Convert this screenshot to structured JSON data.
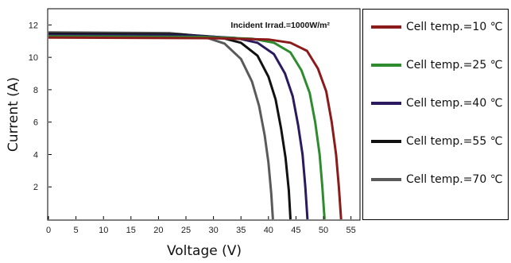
{
  "chart_data": {
    "type": "line",
    "annotation": "Incident Irrad.=1000W/m²",
    "xlabel": "Voltage (V)",
    "ylabel": "Current (A)",
    "xlim": [
      0,
      56.5
    ],
    "ylim": [
      0,
      13
    ],
    "xticks": [
      "0",
      "5",
      "10",
      "15",
      "20",
      "25",
      "30",
      "35",
      "40",
      "45",
      "50",
      "55"
    ],
    "yticks": [
      "2",
      "4",
      "6",
      "8",
      "10",
      "12"
    ],
    "grid": false,
    "legend_position": "right",
    "series": [
      {
        "name": "Cell temp.=10 ℃",
        "color": "#8b1a1a",
        "points": [
          [
            0,
            11.22
          ],
          [
            30,
            11.18
          ],
          [
            40,
            11.1
          ],
          [
            44,
            10.9
          ],
          [
            47,
            10.4
          ],
          [
            49,
            9.3
          ],
          [
            50.5,
            7.9
          ],
          [
            51.5,
            6.0
          ],
          [
            52.3,
            4.0
          ],
          [
            52.8,
            2.0
          ],
          [
            53.2,
            0
          ]
        ]
      },
      {
        "name": "Cell temp.=25 ℃",
        "color": "#2e8b2e",
        "points": [
          [
            0,
            11.3
          ],
          [
            28,
            11.26
          ],
          [
            37,
            11.15
          ],
          [
            41,
            10.9
          ],
          [
            44,
            10.3
          ],
          [
            46,
            9.2
          ],
          [
            47.5,
            7.8
          ],
          [
            48.5,
            6.0
          ],
          [
            49.3,
            4.0
          ],
          [
            49.8,
            2.0
          ],
          [
            50.2,
            0
          ]
        ]
      },
      {
        "name": "Cell temp.=40 ℃",
        "color": "#2b1a5e",
        "points": [
          [
            0,
            11.38
          ],
          [
            26,
            11.34
          ],
          [
            34,
            11.2
          ],
          [
            38,
            10.9
          ],
          [
            41,
            10.2
          ],
          [
            43,
            9.0
          ],
          [
            44.4,
            7.6
          ],
          [
            45.4,
            5.8
          ],
          [
            46.2,
            4.0
          ],
          [
            46.7,
            2.0
          ],
          [
            47.1,
            0
          ]
        ]
      },
      {
        "name": "Cell temp.=55 ℃",
        "color": "#111111",
        "points": [
          [
            0,
            11.46
          ],
          [
            24,
            11.42
          ],
          [
            31,
            11.25
          ],
          [
            35,
            10.9
          ],
          [
            38,
            10.1
          ],
          [
            40,
            8.8
          ],
          [
            41.3,
            7.4
          ],
          [
            42.3,
            5.6
          ],
          [
            43.1,
            3.8
          ],
          [
            43.7,
            1.8
          ],
          [
            44.0,
            0
          ]
        ]
      },
      {
        "name": "Cell temp.=70 ℃",
        "color": "#5a5a5a",
        "points": [
          [
            0,
            11.54
          ],
          [
            22,
            11.5
          ],
          [
            28,
            11.3
          ],
          [
            32,
            10.85
          ],
          [
            35,
            9.9
          ],
          [
            37,
            8.5
          ],
          [
            38.3,
            7.0
          ],
          [
            39.3,
            5.2
          ],
          [
            40.0,
            3.5
          ],
          [
            40.5,
            1.6
          ],
          [
            40.8,
            0
          ]
        ]
      }
    ]
  }
}
